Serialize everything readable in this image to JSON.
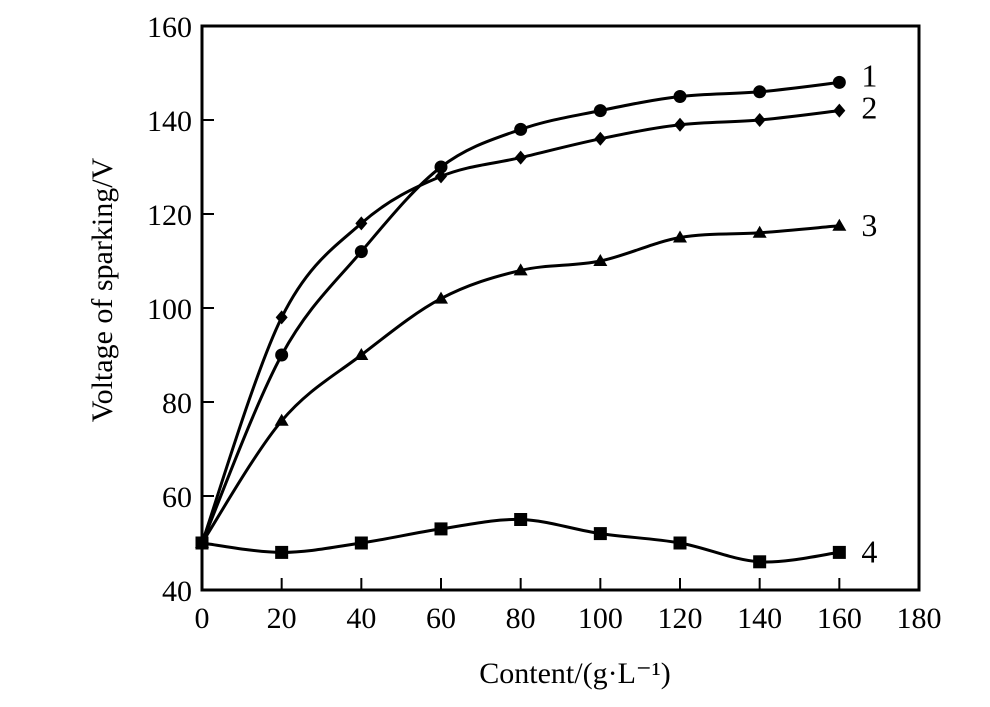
{
  "chart_data": {
    "type": "line",
    "title": "",
    "xlabel": "Content/(g·L⁻¹)",
    "ylabel": "Voltage of sparking/V",
    "xlim": [
      0,
      180
    ],
    "ylim": [
      40,
      160
    ],
    "xticks": [
      0,
      20,
      40,
      60,
      80,
      100,
      120,
      140,
      160,
      180
    ],
    "yticks": [
      40,
      60,
      80,
      100,
      120,
      140,
      160
    ],
    "grid": false,
    "legend": "inline-right",
    "x": [
      0,
      20,
      40,
      60,
      80,
      100,
      120,
      140,
      160
    ],
    "series": [
      {
        "name": "1",
        "marker": "circle",
        "values": [
          50,
          90,
          112,
          130,
          138,
          142,
          145,
          146,
          148
        ]
      },
      {
        "name": "2",
        "marker": "diamond",
        "values": [
          50,
          98,
          118,
          128,
          132,
          136,
          139,
          140,
          142
        ]
      },
      {
        "name": "3",
        "marker": "triangle",
        "values": [
          50,
          76,
          90,
          102,
          108,
          110,
          115,
          116,
          117.5
        ]
      },
      {
        "name": "4",
        "marker": "square",
        "values": [
          50,
          48,
          50,
          53,
          55,
          52,
          50,
          46,
          48
        ]
      }
    ],
    "colors": {
      "line": "#000000",
      "axis": "#000000"
    }
  }
}
